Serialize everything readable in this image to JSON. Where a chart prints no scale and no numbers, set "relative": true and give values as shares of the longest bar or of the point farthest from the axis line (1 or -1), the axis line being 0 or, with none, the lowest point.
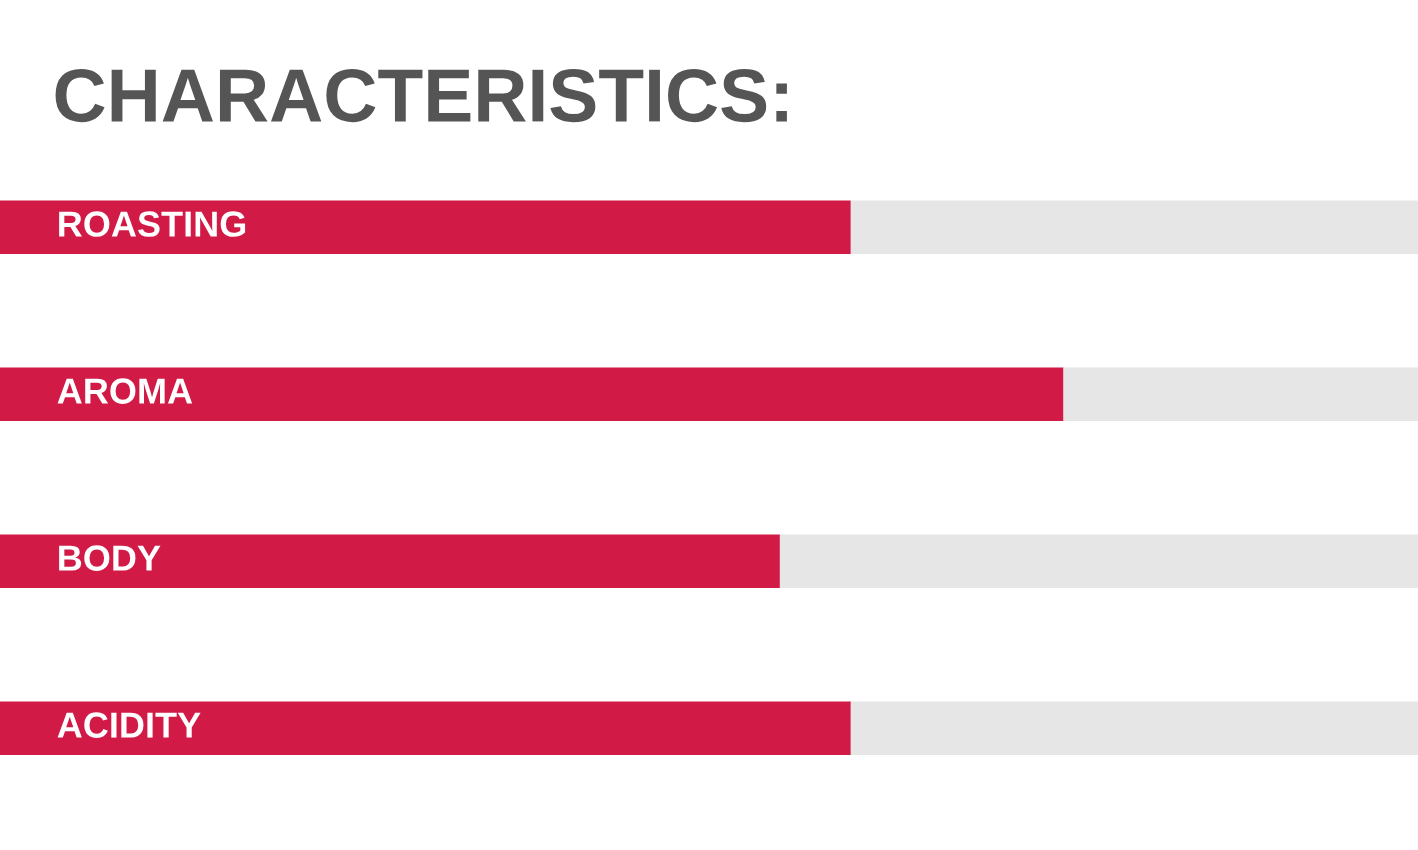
{
  "chart_data": {
    "type": "bar",
    "title": "CHARACTERISTICS:",
    "categories": [
      "ROASTING",
      "AROMA",
      "BODY",
      "ACIDITY"
    ],
    "orientation": "horizontal",
    "stacked": true,
    "relative": true,
    "series": [
      {
        "color": "#d21a47",
        "values": [
          0.6,
          0.75,
          0.55,
          0.6
        ]
      },
      {
        "color": "#e6e6e7",
        "values": [
          0.4,
          0.25,
          0.45,
          0.4
        ]
      }
    ]
  }
}
